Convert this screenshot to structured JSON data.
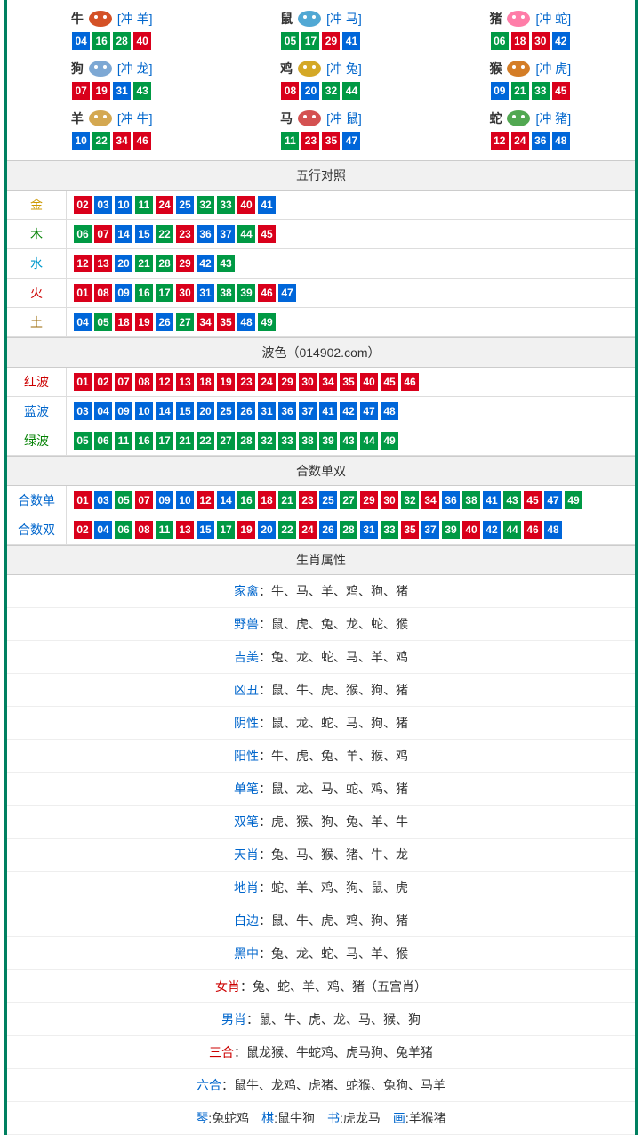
{
  "colors": {
    "red": "#d9001b",
    "blue": "#0066d9",
    "green": "#009944"
  },
  "label_colors": {
    "金": "#cc9900",
    "木": "#008000",
    "水": "#0099cc",
    "火": "#cc0000",
    "土": "#996600",
    "红波": "#cc0000",
    "蓝波": "#0066cc",
    "绿波": "#008000",
    "合数单": "#0066cc",
    "合数双": "#0066cc"
  },
  "zodiac_icons": {
    "牛": "#cc3300",
    "鼠": "#3399cc",
    "猪": "#ff6699",
    "狗": "#6699cc",
    "鸡": "#cc9900",
    "猴": "#cc6600",
    "羊": "#cc9933",
    "马": "#cc3333",
    "蛇": "#339933"
  },
  "zodiac": [
    {
      "name": "牛",
      "clash": "[冲 羊]",
      "balls": [
        {
          "n": "04",
          "c": "blue"
        },
        {
          "n": "16",
          "c": "green"
        },
        {
          "n": "28",
          "c": "green"
        },
        {
          "n": "40",
          "c": "red"
        }
      ]
    },
    {
      "name": "鼠",
      "clash": "[冲 马]",
      "balls": [
        {
          "n": "05",
          "c": "green"
        },
        {
          "n": "17",
          "c": "green"
        },
        {
          "n": "29",
          "c": "red"
        },
        {
          "n": "41",
          "c": "blue"
        }
      ]
    },
    {
      "name": "猪",
      "clash": "[冲 蛇]",
      "balls": [
        {
          "n": "06",
          "c": "green"
        },
        {
          "n": "18",
          "c": "red"
        },
        {
          "n": "30",
          "c": "red"
        },
        {
          "n": "42",
          "c": "blue"
        }
      ]
    },
    {
      "name": "狗",
      "clash": "[冲 龙]",
      "balls": [
        {
          "n": "07",
          "c": "red"
        },
        {
          "n": "19",
          "c": "red"
        },
        {
          "n": "31",
          "c": "blue"
        },
        {
          "n": "43",
          "c": "green"
        }
      ]
    },
    {
      "name": "鸡",
      "clash": "[冲 兔]",
      "balls": [
        {
          "n": "08",
          "c": "red"
        },
        {
          "n": "20",
          "c": "blue"
        },
        {
          "n": "32",
          "c": "green"
        },
        {
          "n": "44",
          "c": "green"
        }
      ]
    },
    {
      "name": "猴",
      "clash": "[冲 虎]",
      "balls": [
        {
          "n": "09",
          "c": "blue"
        },
        {
          "n": "21",
          "c": "green"
        },
        {
          "n": "33",
          "c": "green"
        },
        {
          "n": "45",
          "c": "red"
        }
      ]
    },
    {
      "name": "羊",
      "clash": "[冲 牛]",
      "balls": [
        {
          "n": "10",
          "c": "blue"
        },
        {
          "n": "22",
          "c": "green"
        },
        {
          "n": "34",
          "c": "red"
        },
        {
          "n": "46",
          "c": "red"
        }
      ]
    },
    {
      "name": "马",
      "clash": "[冲 鼠]",
      "balls": [
        {
          "n": "11",
          "c": "green"
        },
        {
          "n": "23",
          "c": "red"
        },
        {
          "n": "35",
          "c": "red"
        },
        {
          "n": "47",
          "c": "blue"
        }
      ]
    },
    {
      "name": "蛇",
      "clash": "[冲 猪]",
      "balls": [
        {
          "n": "12",
          "c": "red"
        },
        {
          "n": "24",
          "c": "red"
        },
        {
          "n": "36",
          "c": "blue"
        },
        {
          "n": "48",
          "c": "blue"
        }
      ]
    }
  ],
  "sections": {
    "wuxing": {
      "title": "五行对照",
      "rows": [
        {
          "label": "金",
          "balls": [
            {
              "n": "02",
              "c": "red"
            },
            {
              "n": "03",
              "c": "blue"
            },
            {
              "n": "10",
              "c": "blue"
            },
            {
              "n": "11",
              "c": "green"
            },
            {
              "n": "24",
              "c": "red"
            },
            {
              "n": "25",
              "c": "blue"
            },
            {
              "n": "32",
              "c": "green"
            },
            {
              "n": "33",
              "c": "green"
            },
            {
              "n": "40",
              "c": "red"
            },
            {
              "n": "41",
              "c": "blue"
            }
          ]
        },
        {
          "label": "木",
          "balls": [
            {
              "n": "06",
              "c": "green"
            },
            {
              "n": "07",
              "c": "red"
            },
            {
              "n": "14",
              "c": "blue"
            },
            {
              "n": "15",
              "c": "blue"
            },
            {
              "n": "22",
              "c": "green"
            },
            {
              "n": "23",
              "c": "red"
            },
            {
              "n": "36",
              "c": "blue"
            },
            {
              "n": "37",
              "c": "blue"
            },
            {
              "n": "44",
              "c": "green"
            },
            {
              "n": "45",
              "c": "red"
            }
          ]
        },
        {
          "label": "水",
          "balls": [
            {
              "n": "12",
              "c": "red"
            },
            {
              "n": "13",
              "c": "red"
            },
            {
              "n": "20",
              "c": "blue"
            },
            {
              "n": "21",
              "c": "green"
            },
            {
              "n": "28",
              "c": "green"
            },
            {
              "n": "29",
              "c": "red"
            },
            {
              "n": "42",
              "c": "blue"
            },
            {
              "n": "43",
              "c": "green"
            }
          ]
        },
        {
          "label": "火",
          "balls": [
            {
              "n": "01",
              "c": "red"
            },
            {
              "n": "08",
              "c": "red"
            },
            {
              "n": "09",
              "c": "blue"
            },
            {
              "n": "16",
              "c": "green"
            },
            {
              "n": "17",
              "c": "green"
            },
            {
              "n": "30",
              "c": "red"
            },
            {
              "n": "31",
              "c": "blue"
            },
            {
              "n": "38",
              "c": "green"
            },
            {
              "n": "39",
              "c": "green"
            },
            {
              "n": "46",
              "c": "red"
            },
            {
              "n": "47",
              "c": "blue"
            }
          ]
        },
        {
          "label": "土",
          "balls": [
            {
              "n": "04",
              "c": "blue"
            },
            {
              "n": "05",
              "c": "green"
            },
            {
              "n": "18",
              "c": "red"
            },
            {
              "n": "19",
              "c": "red"
            },
            {
              "n": "26",
              "c": "blue"
            },
            {
              "n": "27",
              "c": "green"
            },
            {
              "n": "34",
              "c": "red"
            },
            {
              "n": "35",
              "c": "red"
            },
            {
              "n": "48",
              "c": "blue"
            },
            {
              "n": "49",
              "c": "green"
            }
          ]
        }
      ]
    },
    "bose": {
      "title": "波色（014902.com）",
      "rows": [
        {
          "label": "红波",
          "balls": [
            {
              "n": "01",
              "c": "red"
            },
            {
              "n": "02",
              "c": "red"
            },
            {
              "n": "07",
              "c": "red"
            },
            {
              "n": "08",
              "c": "red"
            },
            {
              "n": "12",
              "c": "red"
            },
            {
              "n": "13",
              "c": "red"
            },
            {
              "n": "18",
              "c": "red"
            },
            {
              "n": "19",
              "c": "red"
            },
            {
              "n": "23",
              "c": "red"
            },
            {
              "n": "24",
              "c": "red"
            },
            {
              "n": "29",
              "c": "red"
            },
            {
              "n": "30",
              "c": "red"
            },
            {
              "n": "34",
              "c": "red"
            },
            {
              "n": "35",
              "c": "red"
            },
            {
              "n": "40",
              "c": "red"
            },
            {
              "n": "45",
              "c": "red"
            },
            {
              "n": "46",
              "c": "red"
            }
          ]
        },
        {
          "label": "蓝波",
          "balls": [
            {
              "n": "03",
              "c": "blue"
            },
            {
              "n": "04",
              "c": "blue"
            },
            {
              "n": "09",
              "c": "blue"
            },
            {
              "n": "10",
              "c": "blue"
            },
            {
              "n": "14",
              "c": "blue"
            },
            {
              "n": "15",
              "c": "blue"
            },
            {
              "n": "20",
              "c": "blue"
            },
            {
              "n": "25",
              "c": "blue"
            },
            {
              "n": "26",
              "c": "blue"
            },
            {
              "n": "31",
              "c": "blue"
            },
            {
              "n": "36",
              "c": "blue"
            },
            {
              "n": "37",
              "c": "blue"
            },
            {
              "n": "41",
              "c": "blue"
            },
            {
              "n": "42",
              "c": "blue"
            },
            {
              "n": "47",
              "c": "blue"
            },
            {
              "n": "48",
              "c": "blue"
            }
          ]
        },
        {
          "label": "绿波",
          "balls": [
            {
              "n": "05",
              "c": "green"
            },
            {
              "n": "06",
              "c": "green"
            },
            {
              "n": "11",
              "c": "green"
            },
            {
              "n": "16",
              "c": "green"
            },
            {
              "n": "17",
              "c": "green"
            },
            {
              "n": "21",
              "c": "green"
            },
            {
              "n": "22",
              "c": "green"
            },
            {
              "n": "27",
              "c": "green"
            },
            {
              "n": "28",
              "c": "green"
            },
            {
              "n": "32",
              "c": "green"
            },
            {
              "n": "33",
              "c": "green"
            },
            {
              "n": "38",
              "c": "green"
            },
            {
              "n": "39",
              "c": "green"
            },
            {
              "n": "43",
              "c": "green"
            },
            {
              "n": "44",
              "c": "green"
            },
            {
              "n": "49",
              "c": "green"
            }
          ]
        }
      ]
    },
    "heshu": {
      "title": "合数单双",
      "rows": [
        {
          "label": "合数单",
          "balls": [
            {
              "n": "01",
              "c": "red"
            },
            {
              "n": "03",
              "c": "blue"
            },
            {
              "n": "05",
              "c": "green"
            },
            {
              "n": "07",
              "c": "red"
            },
            {
              "n": "09",
              "c": "blue"
            },
            {
              "n": "10",
              "c": "blue"
            },
            {
              "n": "12",
              "c": "red"
            },
            {
              "n": "14",
              "c": "blue"
            },
            {
              "n": "16",
              "c": "green"
            },
            {
              "n": "18",
              "c": "red"
            },
            {
              "n": "21",
              "c": "green"
            },
            {
              "n": "23",
              "c": "red"
            },
            {
              "n": "25",
              "c": "blue"
            },
            {
              "n": "27",
              "c": "green"
            },
            {
              "n": "29",
              "c": "red"
            },
            {
              "n": "30",
              "c": "red"
            },
            {
              "n": "32",
              "c": "green"
            },
            {
              "n": "34",
              "c": "red"
            },
            {
              "n": "36",
              "c": "blue"
            },
            {
              "n": "38",
              "c": "green"
            },
            {
              "n": "41",
              "c": "blue"
            },
            {
              "n": "43",
              "c": "green"
            },
            {
              "n": "45",
              "c": "red"
            },
            {
              "n": "47",
              "c": "blue"
            },
            {
              "n": "49",
              "c": "green"
            }
          ]
        },
        {
          "label": "合数双",
          "balls": [
            {
              "n": "02",
              "c": "red"
            },
            {
              "n": "04",
              "c": "blue"
            },
            {
              "n": "06",
              "c": "green"
            },
            {
              "n": "08",
              "c": "red"
            },
            {
              "n": "11",
              "c": "green"
            },
            {
              "n": "13",
              "c": "red"
            },
            {
              "n": "15",
              "c": "blue"
            },
            {
              "n": "17",
              "c": "green"
            },
            {
              "n": "19",
              "c": "red"
            },
            {
              "n": "20",
              "c": "blue"
            },
            {
              "n": "22",
              "c": "green"
            },
            {
              "n": "24",
              "c": "red"
            },
            {
              "n": "26",
              "c": "blue"
            },
            {
              "n": "28",
              "c": "green"
            },
            {
              "n": "31",
              "c": "blue"
            },
            {
              "n": "33",
              "c": "green"
            },
            {
              "n": "35",
              "c": "red"
            },
            {
              "n": "37",
              "c": "blue"
            },
            {
              "n": "39",
              "c": "green"
            },
            {
              "n": "40",
              "c": "red"
            },
            {
              "n": "42",
              "c": "blue"
            },
            {
              "n": "44",
              "c": "green"
            },
            {
              "n": "46",
              "c": "red"
            },
            {
              "n": "48",
              "c": "blue"
            }
          ]
        }
      ]
    },
    "attrs": {
      "title": "生肖属性",
      "rows": [
        {
          "label": "家禽",
          "label_color": "#0066cc",
          "value": "：牛、马、羊、鸡、狗、猪"
        },
        {
          "label": "野兽",
          "label_color": "#0066cc",
          "value": "：鼠、虎、兔、龙、蛇、猴"
        },
        {
          "label": "吉美",
          "label_color": "#0066cc",
          "value": "：兔、龙、蛇、马、羊、鸡"
        },
        {
          "label": "凶丑",
          "label_color": "#0066cc",
          "value": "：鼠、牛、虎、猴、狗、猪"
        },
        {
          "label": "阴性",
          "label_color": "#0066cc",
          "value": "：鼠、龙、蛇、马、狗、猪"
        },
        {
          "label": "阳性",
          "label_color": "#0066cc",
          "value": "：牛、虎、兔、羊、猴、鸡"
        },
        {
          "label": "单笔",
          "label_color": "#0066cc",
          "value": "：鼠、龙、马、蛇、鸡、猪"
        },
        {
          "label": "双笔",
          "label_color": "#0066cc",
          "value": "：虎、猴、狗、兔、羊、牛"
        },
        {
          "label": "天肖",
          "label_color": "#0066cc",
          "value": "：兔、马、猴、猪、牛、龙"
        },
        {
          "label": "地肖",
          "label_color": "#0066cc",
          "value": "：蛇、羊、鸡、狗、鼠、虎"
        },
        {
          "label": "白边",
          "label_color": "#0066cc",
          "value": "：鼠、牛、虎、鸡、狗、猪"
        },
        {
          "label": "黑中",
          "label_color": "#0066cc",
          "value": "：兔、龙、蛇、马、羊、猴"
        },
        {
          "label": "女肖",
          "label_color": "#cc0000",
          "value": "：兔、蛇、羊、鸡、猪（五宫肖）"
        },
        {
          "label": "男肖",
          "label_color": "#0066cc",
          "value": "：鼠、牛、虎、龙、马、猴、狗"
        },
        {
          "label": "三合",
          "label_color": "#cc0000",
          "value": "：鼠龙猴、牛蛇鸡、虎马狗、兔羊猪"
        },
        {
          "label": "六合",
          "label_color": "#0066cc",
          "value": "：鼠牛、龙鸡、虎猪、蛇猴、兔狗、马羊"
        }
      ],
      "footer_parts": [
        {
          "label": "琴",
          "label_color": "#0066cc",
          "value": ":兔蛇鸡"
        },
        {
          "label": "棋",
          "label_color": "#0066cc",
          "value": ":鼠牛狗"
        },
        {
          "label": "书",
          "label_color": "#0066cc",
          "value": ":虎龙马"
        },
        {
          "label": "画",
          "label_color": "#0066cc",
          "value": ":羊猴猪"
        }
      ]
    }
  }
}
